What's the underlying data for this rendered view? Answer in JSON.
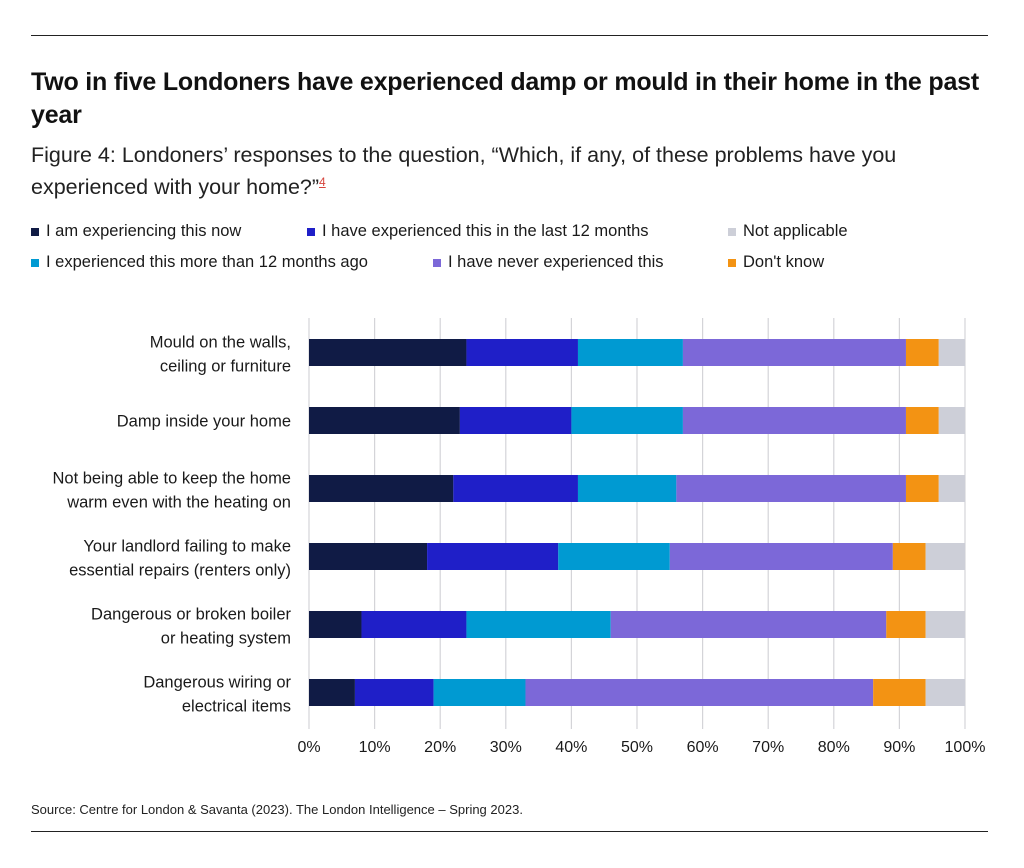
{
  "header": {
    "title": "Two in five Londoners have experienced damp or mould in their home in the past year",
    "subtitle": "Figure 4: Londoners’ responses to the question, “Which, if any, of these problems have you experienced with your home?”",
    "footnote_ref": "4"
  },
  "footer": {
    "source": "Source: Centre for London & Savanta (2023). The London Intelligence – Spring 2023."
  },
  "chart_data": {
    "type": "bar",
    "orientation": "horizontal",
    "stacked": true,
    "title": "Two in five Londoners have experienced damp or mould in their home in the past year",
    "subtitle": "Figure 4: Londoners’ responses to the question, “Which, if any, of these problems have you experienced with your home?”",
    "xlabel": "",
    "ylabel": "",
    "xlim": [
      0,
      100
    ],
    "x_ticks": [
      "0%",
      "10%",
      "20%",
      "30%",
      "40%",
      "50%",
      "60%",
      "70%",
      "80%",
      "90%",
      "100%"
    ],
    "grid": true,
    "legend_position": "top",
    "categories": [
      [
        "Mould on the walls,",
        "ceiling or furniture"
      ],
      [
        "Damp inside your home"
      ],
      [
        "Not being able to keep the home",
        "warm even with the heating on"
      ],
      [
        "Your landlord failing to make",
        "essential repairs (renters only)"
      ],
      [
        "Dangerous or broken boiler",
        "or heating system"
      ],
      [
        "Dangerous wiring or",
        "electrical items"
      ]
    ],
    "series": [
      {
        "name": "I am experiencing this now",
        "color": "#101b45",
        "values": [
          24,
          23,
          22,
          18,
          8,
          7
        ]
      },
      {
        "name": "I have experienced this in the last 12 months",
        "color": "#1f1fc8",
        "values": [
          17,
          17,
          19,
          20,
          16,
          12
        ]
      },
      {
        "name": "I experienced this more than 12 months ago",
        "color": "#009ad2",
        "values": [
          16,
          17,
          15,
          17,
          22,
          14
        ]
      },
      {
        "name": "I have never experienced this",
        "color": "#7c68d8",
        "values": [
          34,
          34,
          35,
          34,
          42,
          53
        ]
      },
      {
        "name": "Don't know",
        "color": "#f39313",
        "values": [
          5,
          5,
          5,
          5,
          6,
          8
        ]
      },
      {
        "name": "Not applicable",
        "color": "#cdcfd8",
        "values": [
          4,
          4,
          4,
          6,
          6,
          6
        ]
      }
    ],
    "legend_order": [
      "I am experiencing this now",
      "I have experienced this in the last 12 months",
      "Not applicable",
      "I experienced this more than 12 months ago",
      "I have never experienced this",
      "Don't know"
    ]
  }
}
